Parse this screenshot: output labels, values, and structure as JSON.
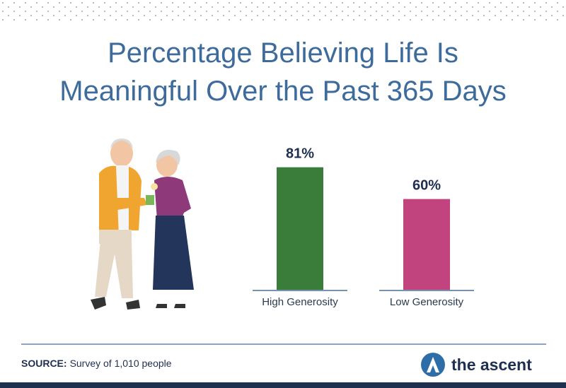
{
  "chart_data": {
    "type": "bar",
    "title": "Percentage Believing Life Is Meaningful Over the Past 365 Days",
    "categories": [
      "High Generosity",
      "Low Generosity"
    ],
    "values": [
      81,
      60
    ],
    "value_labels": [
      "81%",
      "60%"
    ],
    "colors": [
      "#3a7d3a",
      "#c1447f"
    ]
  },
  "footer": {
    "source_label": "SOURCE:",
    "source_text": "Survey of 1,010 people",
    "brand": "the ascent"
  }
}
